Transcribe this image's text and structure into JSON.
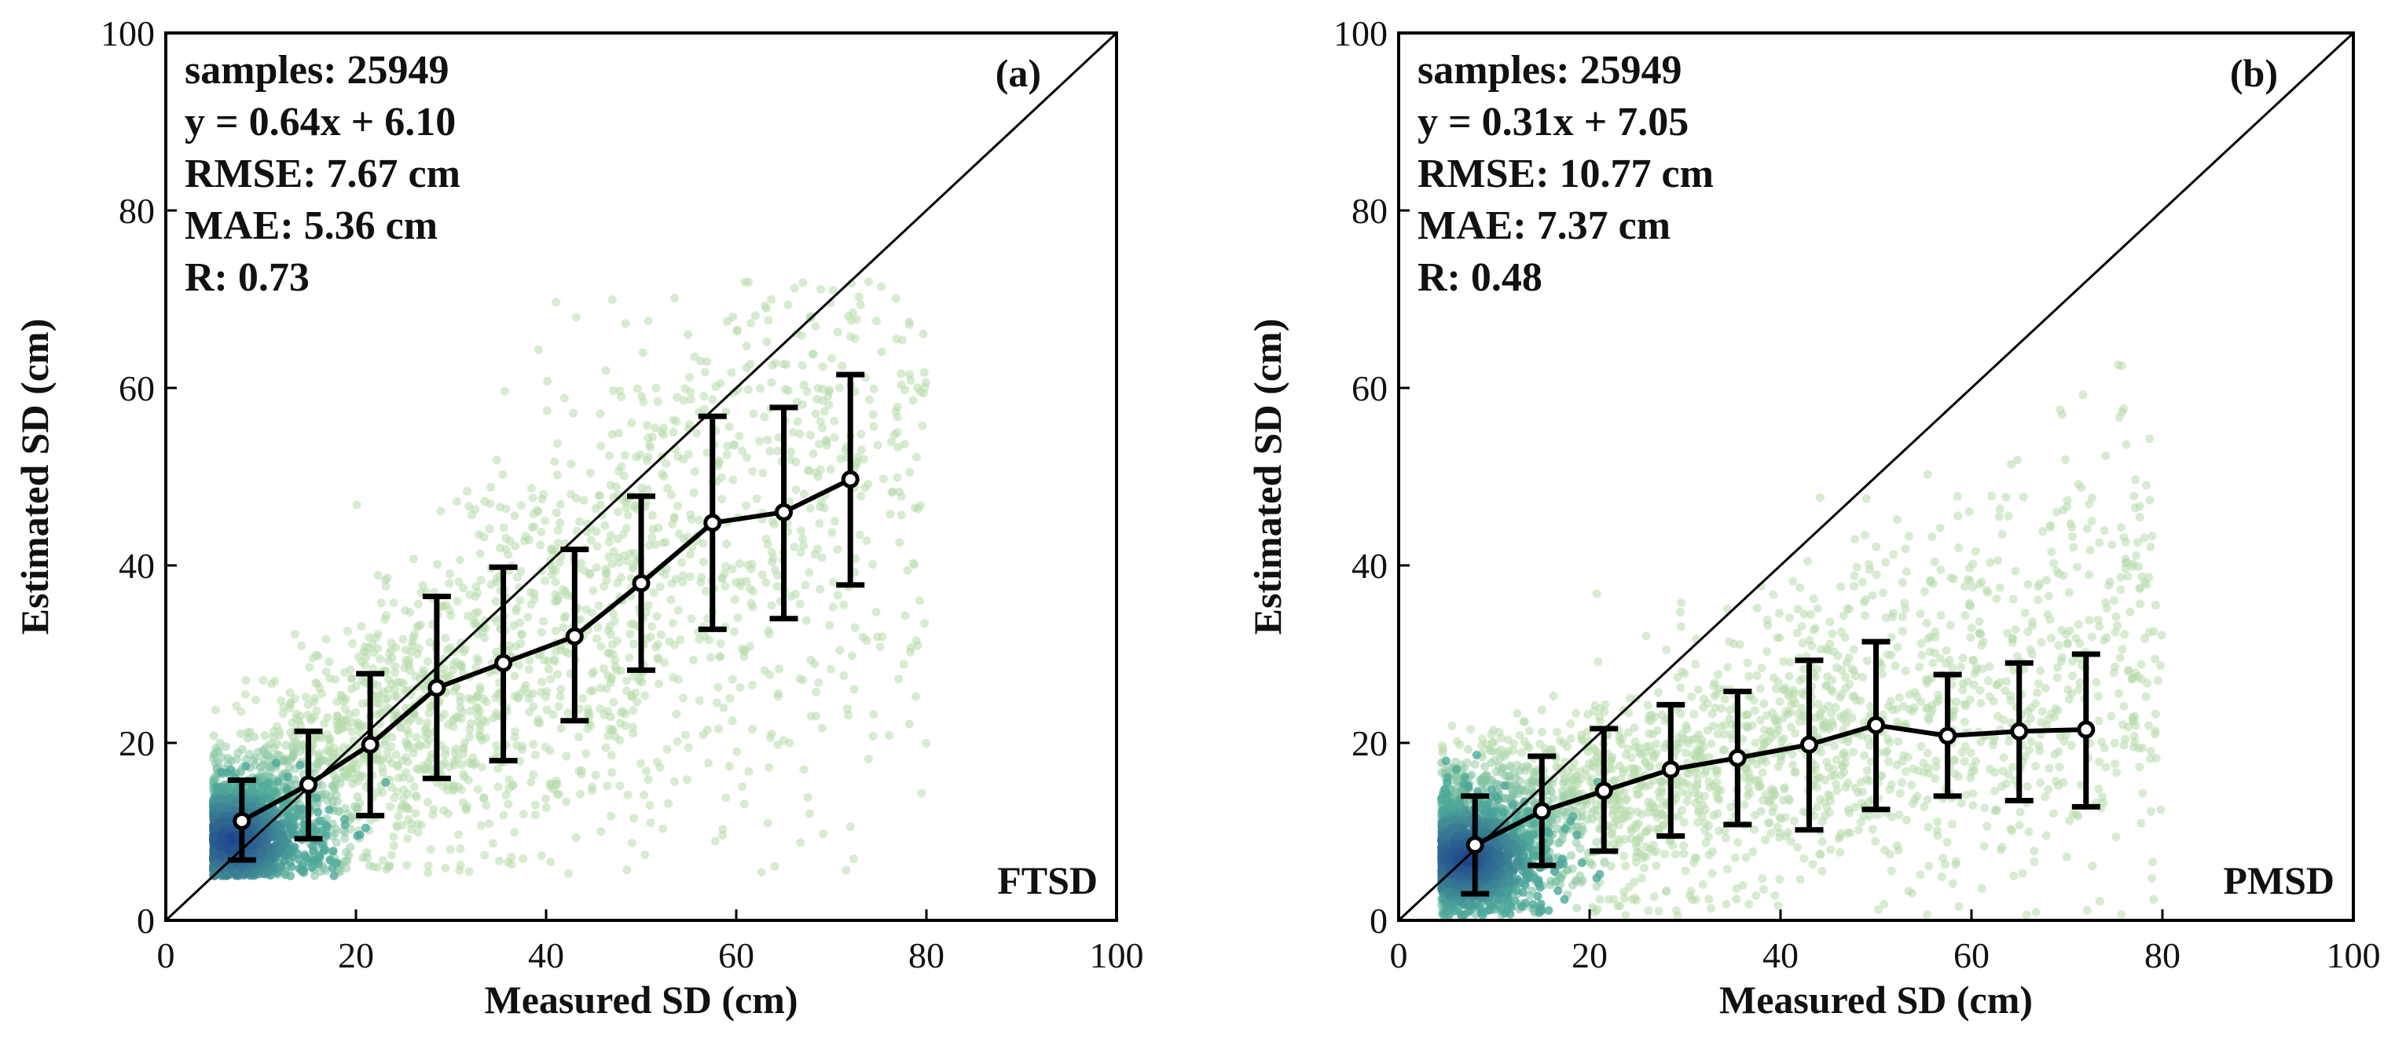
{
  "chart_data": [
    {
      "type": "scatter",
      "panel_label": "(a)",
      "method": "FTSD",
      "xlabel": "Measured SD (cm)",
      "ylabel": "Estimated SD (cm)",
      "xlim": [
        0,
        100
      ],
      "ylim": [
        0,
        100
      ],
      "xticks": [
        0,
        20,
        40,
        60,
        80,
        100
      ],
      "yticks": [
        0,
        20,
        40,
        60,
        80,
        100
      ],
      "reference_line": "1:1",
      "stats": [
        "samples: 25949",
        "y = 0.64x + 6.10",
        "RMSE: 7.67 cm",
        "MAE: 5.36 cm",
        "R: 0.73"
      ],
      "scatter_model": {
        "slope": 0.64,
        "intercept": 6.1,
        "x_min": 5,
        "x_max": 80,
        "y_min": 5
      },
      "binned_series": {
        "x": [
          8,
          15,
          21.5,
          28.5,
          35.5,
          43,
          50,
          57.5,
          65,
          72
        ],
        "mean": [
          11.2,
          15.3,
          19.8,
          26.2,
          29.0,
          32.0,
          38.0,
          44.8,
          46.0,
          49.7
        ],
        "lower": [
          6.8,
          9.2,
          11.8,
          16.0,
          18.0,
          22.5,
          28.2,
          32.8,
          34.0,
          37.8
        ],
        "upper": [
          15.8,
          21.3,
          27.8,
          36.5,
          39.8,
          41.8,
          47.8,
          56.8,
          57.8,
          61.5
        ]
      },
      "colors": {
        "sparse": "#b6dbab",
        "mid": "#4fa99a",
        "dense": "#1b3f8c",
        "line": "#000000"
      }
    },
    {
      "type": "scatter",
      "panel_label": "(b)",
      "method": "PMSD",
      "xlabel": "Measured SD (cm)",
      "ylabel": "Estimated SD (cm)",
      "xlim": [
        0,
        100
      ],
      "ylim": [
        0,
        100
      ],
      "xticks": [
        0,
        20,
        40,
        60,
        80,
        100
      ],
      "yticks": [
        0,
        20,
        40,
        60,
        80,
        100
      ],
      "reference_line": "1:1",
      "stats": [
        "samples: 25949",
        "y = 0.31x + 7.05",
        "RMSE: 10.77 cm",
        "MAE: 7.37 cm",
        "R: 0.48"
      ],
      "scatter_model": {
        "slope": 0.31,
        "intercept": 7.05,
        "x_min": 4.5,
        "x_max": 80,
        "y_min": 0.5
      },
      "binned_series": {
        "x": [
          8,
          15,
          21.5,
          28.5,
          35.5,
          43,
          50,
          57.5,
          65,
          72
        ],
        "mean": [
          8.5,
          12.3,
          14.6,
          17.0,
          18.3,
          19.8,
          22.0,
          20.8,
          21.3,
          21.5
        ],
        "lower": [
          3.0,
          6.2,
          7.8,
          9.5,
          10.8,
          10.2,
          12.5,
          14.0,
          13.5,
          12.8
        ],
        "upper": [
          14.0,
          18.5,
          21.6,
          24.3,
          25.8,
          29.3,
          31.4,
          27.7,
          29.0,
          30.0
        ]
      },
      "colors": {
        "sparse": "#b6dbab",
        "mid": "#4fa99a",
        "dense": "#1b3f8c",
        "line": "#000000"
      }
    }
  ]
}
